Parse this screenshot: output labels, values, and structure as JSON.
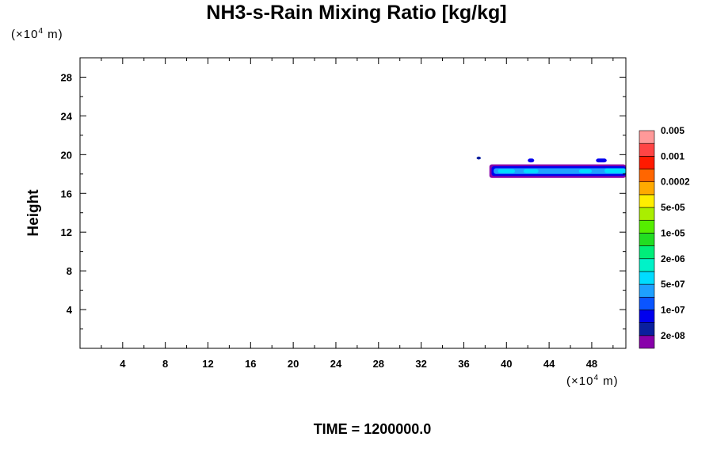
{
  "chart_data": {
    "type": "heatmap",
    "title": "NH3-s-Rain Mixing Ratio [kg/kg]",
    "ylabel": "Height",
    "y_unit": {
      "prefix": "(×10",
      "exp": "4",
      "suffix": " m)"
    },
    "x_unit": {
      "prefix": "(×10",
      "exp": "4",
      "suffix": " m)"
    },
    "xlim": [
      0,
      51.2
    ],
    "ylim": [
      0,
      30
    ],
    "x_ticks": [
      4,
      8,
      12,
      16,
      20,
      24,
      28,
      32,
      36,
      40,
      44,
      48
    ],
    "y_ticks": [
      4,
      8,
      12,
      16,
      20,
      24,
      28
    ],
    "time_label": "TIME = 1200000.0",
    "colorbar": {
      "colors": [
        "#8800aa",
        "#0a1f9e",
        "#0000ee",
        "#0a55ff",
        "#1ea0ff",
        "#00dcff",
        "#00f2c8",
        "#00ee7a",
        "#22dd22",
        "#55ee00",
        "#aaee00",
        "#ffee00",
        "#ffaa00",
        "#ff6600",
        "#ff1a00",
        "#ff4444",
        "#ff9999"
      ],
      "labels": [
        "2e-08",
        "1e-07",
        "5e-07",
        "2e-06",
        "1e-05",
        "5e-05",
        "0.0002",
        "0.001",
        "0.005"
      ]
    },
    "regions": [
      {
        "x": [
          38.4,
          51.2
        ],
        "y": [
          17.6,
          19.0
        ],
        "level": 0
      },
      {
        "x": [
          38.6,
          51.2
        ],
        "y": [
          17.8,
          18.8
        ],
        "level": 2
      },
      {
        "x": [
          38.8,
          51.2
        ],
        "y": [
          18.0,
          18.6
        ],
        "level": 4
      },
      {
        "x": [
          39.2,
          40.8
        ],
        "y": [
          18.1,
          18.5
        ],
        "level": 5
      },
      {
        "x": [
          41.6,
          43.0
        ],
        "y": [
          18.1,
          18.5
        ],
        "level": 5
      },
      {
        "x": [
          46.8,
          48.0
        ],
        "y": [
          18.1,
          18.5
        ],
        "level": 5
      },
      {
        "x": [
          49.2,
          51.2
        ],
        "y": [
          18.1,
          18.6
        ],
        "level": 5
      },
      {
        "x": [
          37.2,
          37.6
        ],
        "y": [
          19.5,
          19.8
        ],
        "level": 1
      },
      {
        "x": [
          42.0,
          42.6
        ],
        "y": [
          19.2,
          19.6
        ],
        "level": 2
      },
      {
        "x": [
          48.4,
          49.4
        ],
        "y": [
          19.2,
          19.6
        ],
        "level": 2
      }
    ]
  }
}
